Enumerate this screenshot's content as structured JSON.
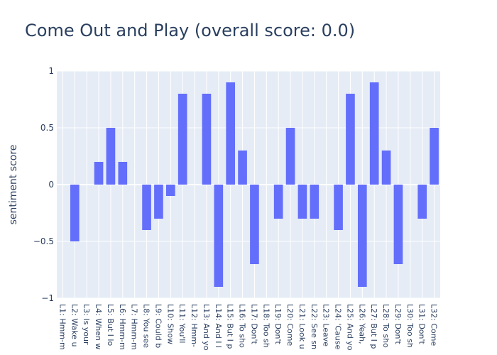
{
  "chart_data": {
    "type": "bar",
    "title": "Come Out and Play (overall score: 0.0)",
    "xlabel": "",
    "ylabel": "sentiment score",
    "ylim": [
      -1,
      1
    ],
    "yticks": [
      {
        "value": 1,
        "label": "1"
      },
      {
        "value": 0.5,
        "label": "0.5"
      },
      {
        "value": 0,
        "label": "0"
      },
      {
        "value": -0.5,
        "label": "−0.5"
      },
      {
        "value": -1,
        "label": "−1"
      }
    ],
    "grid": true,
    "categories": [
      "L1: Hmm-m",
      "L2: Wake u",
      "L3: Is your",
      "L4: When w",
      "L5: But I lo",
      "L6: Hmm-m",
      "L7: Hmm-m",
      "L8: You see",
      "L9: Could b",
      "L10: Show",
      "L11: You'll",
      "L12: Hmm-",
      "L13: And yo",
      "L14: And I l",
      "L15: But I p",
      "L16: To sho",
      "L17: Don't",
      "L18: Too sh",
      "L19: Don't",
      "L20: Come",
      "L21: Look u",
      "L22: See sn",
      "L23: Leave",
      "L24: 'Cause",
      "L25: And yo",
      "L26: Yeah,",
      "L27: But I p",
      "L28: To sho",
      "L29: Don't",
      "L30: Too sh",
      "L31: Don't",
      "L32: Come"
    ],
    "values": [
      0,
      -0.5,
      0,
      0.2,
      0.5,
      0.2,
      0,
      -0.4,
      -0.3,
      -0.1,
      0.8,
      0,
      0.8,
      -0.9,
      0.9,
      0.3,
      -0.7,
      0,
      -0.3,
      0.5,
      -0.3,
      -0.3,
      0,
      -0.4,
      0.8,
      -0.9,
      0.9,
      0.3,
      -0.7,
      0,
      -0.3,
      0.5
    ],
    "bar_color": "#636efa",
    "plot_background": "#e5ecf6",
    "grid_color": "#ffffff",
    "text_color": "#2a3f5f"
  }
}
